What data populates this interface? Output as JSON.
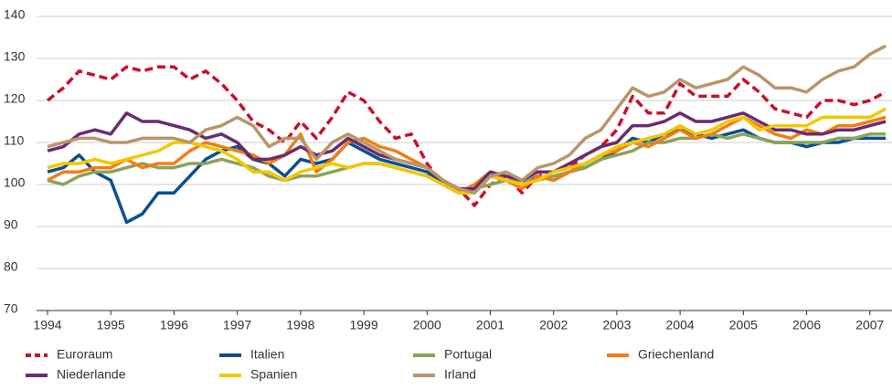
{
  "chart_data": {
    "type": "line",
    "x": [
      1994,
      1994.25,
      1994.5,
      1994.75,
      1995,
      1995.25,
      1995.5,
      1995.75,
      1996,
      1996.25,
      1996.5,
      1996.75,
      1997,
      1997.25,
      1997.5,
      1997.75,
      1998,
      1998.25,
      1998.5,
      1998.75,
      1999,
      1999.25,
      1999.5,
      1999.75,
      2000,
      2000.25,
      2000.5,
      2000.75,
      2001,
      2001.25,
      2001.5,
      2001.75,
      2002,
      2002.25,
      2002.5,
      2002.75,
      2003,
      2003.25,
      2003.5,
      2003.75,
      2004,
      2004.25,
      2004.5,
      2004.75,
      2005,
      2005.25,
      2005.5,
      2005.75,
      2006,
      2006.25,
      2006.5,
      2006.75,
      2007,
      2007.25
    ],
    "xlim": [
      1994,
      2007.35
    ],
    "xticks": [
      1994,
      1995,
      1996,
      1997,
      1998,
      1999,
      2000,
      2001,
      2002,
      2003,
      2004,
      2005,
      2006,
      2007
    ],
    "ylim": [
      70,
      140
    ],
    "yticks": [
      70,
      80,
      90,
      100,
      110,
      120,
      130,
      140
    ],
    "grid": true,
    "legend": "bottom",
    "series": [
      {
        "name": "Euroraum",
        "color": "#c8102e",
        "dashed": true,
        "values": [
          120,
          123,
          127,
          126,
          125,
          128,
          127,
          128,
          128,
          125,
          127,
          124,
          120,
          115,
          113,
          110,
          115,
          111,
          116,
          122,
          120,
          115,
          111,
          112,
          105,
          100,
          99,
          95,
          100,
          102,
          98,
          102,
          103,
          104,
          107,
          109,
          113,
          121,
          117,
          117,
          124,
          121,
          121,
          121,
          125,
          122,
          118,
          117,
          116,
          120,
          120,
          119,
          120,
          122
        ]
      },
      {
        "name": "Italien",
        "color": "#0b4f8f",
        "values": [
          103,
          104,
          107,
          103,
          101,
          91,
          93,
          98,
          98,
          102,
          106,
          108,
          109,
          106,
          105,
          102,
          106,
          105,
          106,
          110,
          108,
          106,
          105,
          104,
          103,
          100,
          98,
          99,
          102,
          101,
          100,
          102,
          101,
          103,
          104,
          106,
          108,
          111,
          110,
          112,
          113,
          112,
          111,
          112,
          113,
          111,
          110,
          110,
          109,
          110,
          110,
          111,
          111,
          111
        ]
      },
      {
        "name": "Portugal",
        "color": "#8aa35a",
        "values": [
          101,
          100,
          102,
          103,
          103,
          104,
          105,
          104,
          104,
          105,
          105,
          106,
          105,
          104,
          102,
          101,
          102,
          102,
          103,
          104,
          105,
          105,
          104,
          103,
          102,
          100,
          99,
          99,
          100,
          101,
          101,
          101,
          102,
          103,
          104,
          106,
          107,
          108,
          110,
          110,
          111,
          111,
          112,
          111,
          112,
          111,
          110,
          110,
          110,
          110,
          111,
          111,
          112,
          112
        ]
      },
      {
        "name": "Griechenland",
        "color": "#f07f14",
        "values": [
          101,
          103,
          103,
          104,
          104,
          106,
          104,
          105,
          105,
          108,
          110,
          109,
          108,
          107,
          105,
          107,
          112,
          103,
          106,
          110,
          111,
          109,
          108,
          106,
          104,
          101,
          98,
          100,
          103,
          101,
          99,
          102,
          101,
          103,
          105,
          107,
          108,
          110,
          109,
          111,
          113,
          111,
          112,
          114,
          116,
          114,
          112,
          111,
          113,
          112,
          114,
          114,
          115,
          116
        ]
      },
      {
        "name": "Niederlande",
        "color": "#6a2c70",
        "values": [
          108,
          109,
          112,
          113,
          112,
          117,
          115,
          115,
          114,
          113,
          111,
          112,
          110,
          106,
          106,
          107,
          109,
          107,
          108,
          111,
          109,
          107,
          106,
          105,
          104,
          101,
          99,
          99,
          103,
          102,
          101,
          103,
          103,
          105,
          107,
          109,
          110,
          114,
          114,
          115,
          117,
          115,
          115,
          116,
          117,
          115,
          113,
          113,
          112,
          112,
          113,
          113,
          114,
          115
        ]
      },
      {
        "name": "Spanien",
        "color": "#f2c800",
        "values": [
          104,
          105,
          105,
          106,
          105,
          106,
          107,
          108,
          110,
          110,
          109,
          108,
          106,
          103,
          103,
          101,
          103,
          104,
          105,
          104,
          105,
          105,
          104,
          103,
          102,
          100,
          98,
          98,
          102,
          101,
          100,
          101,
          103,
          104,
          105,
          107,
          109,
          110,
          111,
          112,
          114,
          112,
          113,
          115,
          116,
          113,
          114,
          114,
          114,
          116,
          116,
          116,
          116,
          118
        ]
      },
      {
        "name": "Irland",
        "color": "#b8966a",
        "values": [
          109,
          110,
          111,
          111,
          110,
          110,
          111,
          111,
          111,
          110,
          113,
          114,
          116,
          114,
          109,
          111,
          111,
          106,
          110,
          112,
          110,
          108,
          106,
          105,
          104,
          101,
          99,
          98,
          102,
          103,
          101,
          104,
          105,
          107,
          111,
          113,
          118,
          123,
          121,
          122,
          125,
          123,
          124,
          125,
          128,
          126,
          123,
          123,
          122,
          125,
          127,
          128,
          131,
          133
        ]
      }
    ]
  }
}
